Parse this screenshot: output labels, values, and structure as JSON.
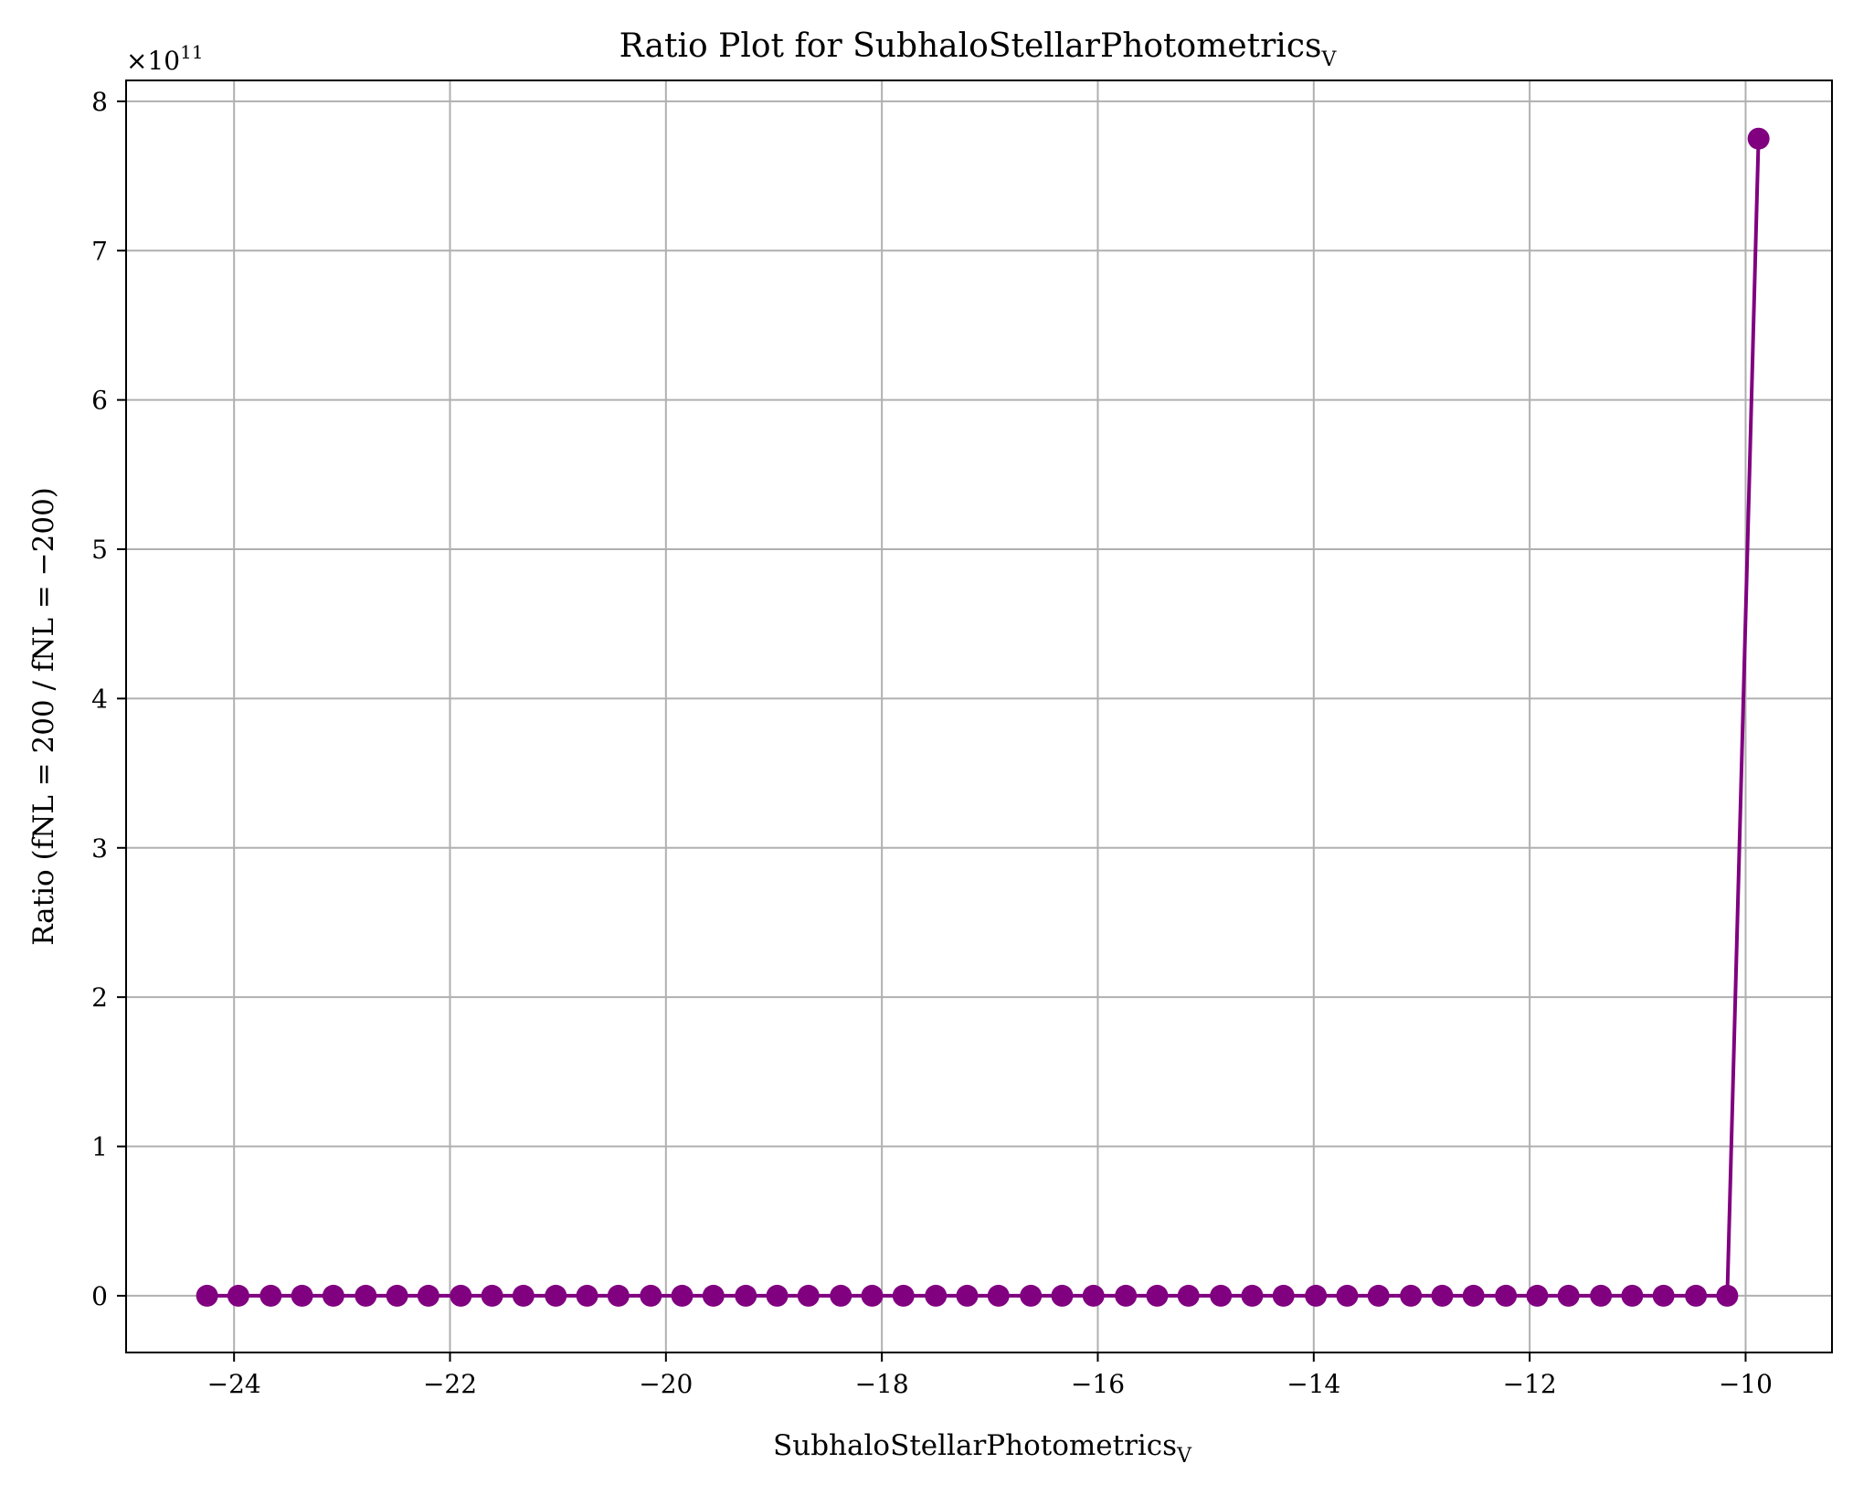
{
  "chart_data": {
    "type": "line",
    "title": "Ratio Plot for SubhaloStellarPhotometrics",
    "title_subscript": "V",
    "xlabel": "SubhaloStellarPhotometrics",
    "xlabel_subscript": "V",
    "ylabel": "Ratio (fNL = 200 / fNL = −200)",
    "y_offset_label": "×10",
    "y_offset_exponent": "11",
    "y_scale": 100000000000.0,
    "xlim": [
      -25.0,
      -9.2
    ],
    "ylim": [
      -0.38,
      8.14
    ],
    "x_ticks": [
      -24,
      -22,
      -20,
      -18,
      -16,
      -14,
      -12,
      -10
    ],
    "x_tick_labels": [
      "−24",
      "−22",
      "−20",
      "−18",
      "−16",
      "−14",
      "−12",
      "−10"
    ],
    "y_ticks": [
      0,
      1,
      2,
      3,
      4,
      5,
      6,
      7,
      8
    ],
    "y_tick_labels": [
      "0",
      "1",
      "2",
      "3",
      "4",
      "5",
      "6",
      "7",
      "8"
    ],
    "grid": true,
    "series_color": "#800080",
    "series": [
      {
        "x": [
          -24.25,
          -23.96,
          -23.66,
          -23.37,
          -23.08,
          -22.78,
          -22.49,
          -22.2,
          -21.9,
          -21.61,
          -21.32,
          -21.02,
          -20.73,
          -20.44,
          -20.14,
          -19.85,
          -19.56,
          -19.26,
          -18.97,
          -18.68,
          -18.38,
          -18.09,
          -17.8,
          -17.5,
          -17.21,
          -16.92,
          -16.62,
          -16.33,
          -16.04,
          -15.74,
          -15.45,
          -15.16,
          -14.86,
          -14.57,
          -14.28,
          -13.98,
          -13.69,
          -13.4,
          -13.1,
          -12.81,
          -12.52,
          -12.22,
          -11.93,
          -11.64,
          -11.34,
          -11.05,
          -10.76,
          -10.46,
          -10.17,
          -9.88
        ],
        "y": [
          0,
          0,
          0,
          0,
          0,
          0,
          0,
          0,
          0,
          0,
          0,
          0,
          0,
          0,
          0,
          0,
          0,
          0,
          0,
          0,
          0,
          0,
          0,
          0,
          0,
          0,
          0,
          0,
          0,
          0,
          0,
          0,
          0,
          0,
          0,
          0,
          0,
          0,
          0,
          0,
          0,
          0,
          0,
          0,
          0,
          0,
          0,
          0,
          0,
          7.75
        ]
      }
    ]
  }
}
